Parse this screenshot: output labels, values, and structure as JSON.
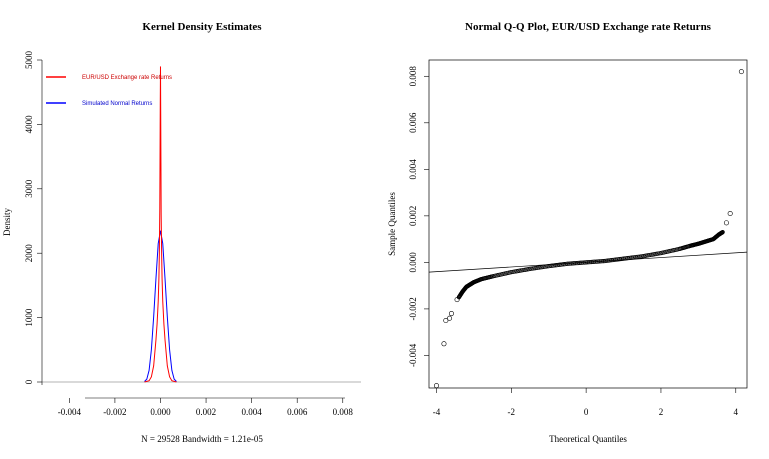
{
  "chart_data": [
    {
      "type": "line",
      "title": "Kernel Density Estimates",
      "xlabel": "N = 29528   Bandwidth = 1.21e-05",
      "ylabel": "Density",
      "xlim": [
        -0.0052,
        0.0088
      ],
      "ylim": [
        0,
        5000
      ],
      "x_ticks": [
        -0.004,
        -0.002,
        0.0,
        0.002,
        0.004,
        0.006,
        0.008
      ],
      "x_tick_labels": [
        "-0.004",
        "-0.002",
        "0.000",
        "0.002",
        "0.004",
        "0.006",
        "0.008"
      ],
      "y_ticks": [
        0,
        1000,
        2000,
        3000,
        4000,
        5000
      ],
      "y_tick_labels": [
        "0",
        "1000",
        "2000",
        "3000",
        "4000",
        "5000"
      ],
      "legend_position": "top-left",
      "series": [
        {
          "name": "EUR/USD Exchange rate Returns",
          "color": "#ff0000",
          "x": [
            -0.0007,
            -0.0005,
            -0.0004,
            -0.0003,
            -0.0002,
            -0.00015,
            -0.0001,
            -7e-05,
            -5e-05,
            -3e-05,
            -2e-05,
            -1e-05,
            0.0,
            1e-05,
            2e-05,
            3e-05,
            5e-05,
            7e-05,
            0.0001,
            0.00015,
            0.0002,
            0.0003,
            0.0004,
            0.0005,
            0.0007
          ],
          "y": [
            0,
            20,
            80,
            250,
            650,
            900,
            1250,
            1600,
            2000,
            2700,
            3500,
            4300,
            4900,
            4200,
            3400,
            2600,
            2000,
            1600,
            1250,
            900,
            650,
            250,
            80,
            20,
            0
          ]
        },
        {
          "name": "Simulated Normal Returns",
          "color": "#0000ff",
          "x": [
            -0.0007,
            -0.0006,
            -0.0005,
            -0.0004,
            -0.0003,
            -0.0002,
            -0.0001,
            0.0,
            0.0001,
            0.0002,
            0.0003,
            0.0004,
            0.0005,
            0.0006,
            0.0007
          ],
          "y": [
            8,
            45,
            180,
            500,
            1010,
            1600,
            2150,
            2350,
            2150,
            1600,
            1010,
            500,
            180,
            45,
            8
          ]
        }
      ]
    },
    {
      "type": "scatter",
      "title": "Normal Q-Q Plot, EUR/USD Exchange rate Returns",
      "xlabel": "Theoretical Quantiles",
      "ylabel": "Sample Quantiles",
      "xlim": [
        -4.2,
        4.3
      ],
      "ylim": [
        -0.0054,
        0.0087
      ],
      "x_ticks": [
        -4,
        -2,
        0,
        2,
        4
      ],
      "x_tick_labels": [
        "-4",
        "-2",
        "0",
        "2",
        "4"
      ],
      "y_ticks": [
        -0.004,
        -0.002,
        0.0,
        0.002,
        0.004,
        0.006,
        0.008
      ],
      "y_tick_labels": [
        "-0.004",
        "-0.002",
        "0.000",
        "0.002",
        "0.004",
        "0.006",
        "0.008"
      ],
      "reference_line": {
        "x": [
          -4.2,
          4.3
        ],
        "y": [
          -0.00042,
          0.00044
        ]
      },
      "tail_points": {
        "x": [
          -4.0,
          -3.8,
          -3.75,
          -3.65,
          -3.6,
          -3.45,
          3.75,
          3.85,
          4.15
        ],
        "y": [
          -0.0053,
          -0.0035,
          -0.0025,
          -0.0024,
          -0.0022,
          -0.0016,
          0.0017,
          0.0021,
          0.0082
        ]
      },
      "quantile_curve": {
        "x": [
          -3.4,
          -3.3,
          -3.2,
          -3.1,
          -3.0,
          -2.8,
          -2.5,
          -2.0,
          -1.5,
          -1.0,
          -0.5,
          0.0,
          0.5,
          1.0,
          1.5,
          2.0,
          2.5,
          2.8,
          3.0,
          3.2,
          3.4,
          3.55,
          3.65
        ],
        "y": [
          -0.0015,
          -0.00125,
          -0.00105,
          -0.00095,
          -0.00085,
          -0.00072,
          -0.0006,
          -0.00042,
          -0.00028,
          -0.00016,
          -6e-05,
          0.0,
          6e-05,
          0.00016,
          0.00026,
          0.0004,
          0.00058,
          0.00072,
          0.0008,
          0.0009,
          0.001,
          0.0012,
          0.0013
        ]
      }
    }
  ]
}
